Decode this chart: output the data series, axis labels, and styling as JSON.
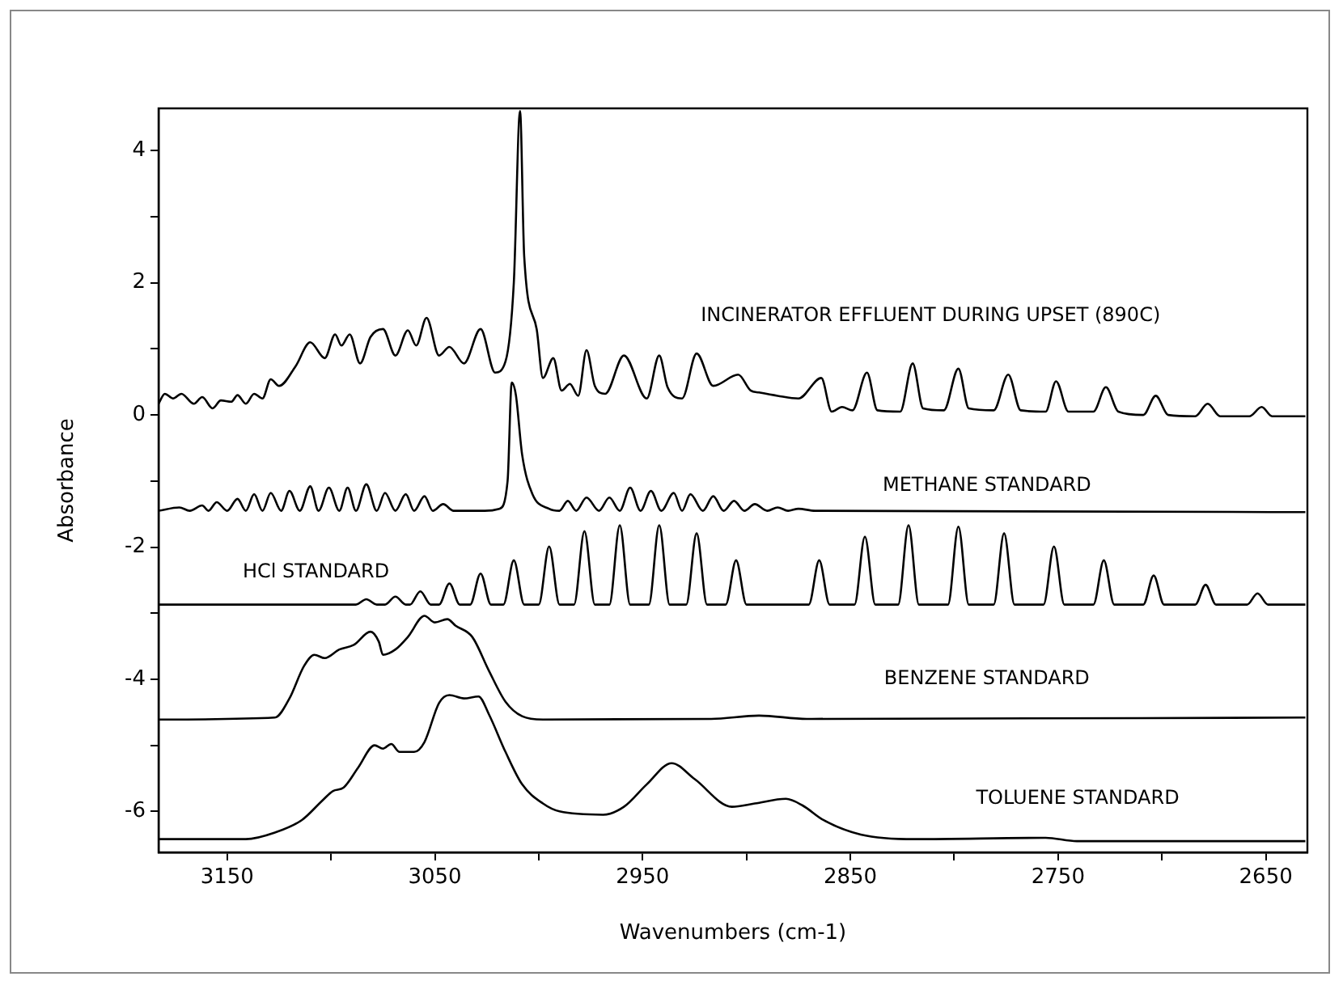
{
  "chart_data": {
    "type": "line",
    "xlabel": "Wavenumbers (cm-1)",
    "ylabel": "Absorbance",
    "xlim": [
      3183,
      2630
    ],
    "ylim": [
      -6.62,
      4.64
    ],
    "xticks": [
      3150,
      {
        "value": 3100,
        "label": null
      },
      3050,
      {
        "value": 3000,
        "label": null
      },
      2950,
      {
        "value": 2900,
        "label": null
      },
      2850,
      {
        "value": 2800,
        "label": null
      },
      2750,
      {
        "value": 2700,
        "label": null
      },
      2650
    ],
    "yticks": [
      -6,
      {
        "value": -5,
        "label": null
      },
      -4,
      {
        "value": -3,
        "label": null
      },
      -2,
      {
        "value": -1,
        "label": null
      },
      0,
      {
        "value": 1,
        "label": null
      },
      2,
      {
        "value": 3,
        "label": null
      },
      4
    ],
    "grid": false,
    "legend": false,
    "series": [
      {
        "name": "INCINERATOR EFFLUENT DURING UPSET (890C)",
        "color": "#000000",
        "x": [
          3183,
          3180,
          3176,
          3172,
          3166,
          3162,
          3157,
          3153,
          3148,
          3145,
          3141,
          3137,
          3133,
          3129,
          3125,
          3117,
          3110,
          3103,
          3098,
          3095,
          3091,
          3086,
          3081,
          3075,
          3069,
          3063,
          3059,
          3054,
          3048,
          3043,
          3036,
          3028,
          3021,
          3016,
          3012,
          3009,
          3007,
          3001,
          2998,
          2993,
          2989,
          2985,
          2981,
          2977,
          2973,
          2968,
          2959,
          2948,
          2942,
          2938,
          2931,
          2924,
          2916,
          2904,
          2898,
          2894,
          2885,
          2875,
          2864,
          2859,
          2854,
          2849,
          2842,
          2837,
          2826,
          2820,
          2815,
          2805,
          2798,
          2793,
          2781,
          2774,
          2768,
          2756,
          2751,
          2745,
          2733,
          2727,
          2721,
          2709,
          2703,
          2697,
          2684,
          2678,
          2672,
          2658,
          2652,
          2647,
          2631
        ],
        "values": [
          0.17,
          0.32,
          0.25,
          0.32,
          0.17,
          0.27,
          0.1,
          0.22,
          0.2,
          0.3,
          0.17,
          0.32,
          0.25,
          0.54,
          0.44,
          0.74,
          1.1,
          0.86,
          1.22,
          1.05,
          1.22,
          0.78,
          1.18,
          1.3,
          0.9,
          1.28,
          1.05,
          1.47,
          0.9,
          1.03,
          0.78,
          1.3,
          0.64,
          0.81,
          2.0,
          4.6,
          2.4,
          1.3,
          0.56,
          0.86,
          0.37,
          0.47,
          0.29,
          0.98,
          0.44,
          0.32,
          0.9,
          0.25,
          0.9,
          0.42,
          0.25,
          0.93,
          0.44,
          0.61,
          0.37,
          0.34,
          0.29,
          0.25,
          0.56,
          0.05,
          0.12,
          0.07,
          0.64,
          0.07,
          0.05,
          0.78,
          0.1,
          0.07,
          0.7,
          0.1,
          0.07,
          0.61,
          0.07,
          0.05,
          0.51,
          0.05,
          0.05,
          0.42,
          0.05,
          0,
          0.29,
          0,
          -0.02,
          0.17,
          -0.02,
          -0.02,
          0.12,
          -0.02,
          -0.02
        ]
      },
      {
        "name": "METHANE STANDARD",
        "color": "#000000",
        "x": [
          3183,
          3173,
          3168,
          3162,
          3159,
          3155,
          3150,
          3145,
          3141,
          3137,
          3133,
          3129,
          3124,
          3120,
          3115,
          3110,
          3106,
          3101,
          3096,
          3092,
          3088,
          3083,
          3078,
          3074,
          3069,
          3064,
          3060,
          3055,
          3051,
          3046,
          3041,
          3026,
          3019,
          3015,
          3013,
          3011,
          3008,
          3003,
          2995,
          2990,
          2986,
          2982,
          2977,
          2971,
          2966,
          2961,
          2956,
          2951,
          2946,
          2941,
          2935,
          2931,
          2927,
          2921,
          2916,
          2911,
          2906,
          2901,
          2896,
          2890,
          2885,
          2880,
          2875,
          2867,
          2631
        ],
        "values": [
          -1.45,
          -1.4,
          -1.45,
          -1.37,
          -1.45,
          -1.32,
          -1.45,
          -1.27,
          -1.45,
          -1.2,
          -1.45,
          -1.18,
          -1.45,
          -1.15,
          -1.45,
          -1.08,
          -1.45,
          -1.1,
          -1.45,
          -1.1,
          -1.45,
          -1.05,
          -1.45,
          -1.18,
          -1.45,
          -1.2,
          -1.45,
          -1.23,
          -1.45,
          -1.35,
          -1.45,
          -1.45,
          -1.42,
          -1.0,
          0.49,
          0.3,
          -0.6,
          -1.2,
          -1.42,
          -1.45,
          -1.3,
          -1.45,
          -1.25,
          -1.45,
          -1.25,
          -1.45,
          -1.1,
          -1.45,
          -1.15,
          -1.45,
          -1.18,
          -1.45,
          -1.2,
          -1.45,
          -1.23,
          -1.45,
          -1.3,
          -1.45,
          -1.35,
          -1.45,
          -1.4,
          -1.45,
          -1.42,
          -1.45,
          -1.47
        ]
      },
      {
        "name": "HCl STANDARD",
        "color": "#000000",
        "x": [
          3183,
          3088,
          3083,
          3078,
          3074,
          3069,
          3064,
          3062,
          3057,
          3052,
          3048,
          3043,
          3038,
          3033,
          3028,
          3023,
          3017,
          3012,
          3007,
          3000,
          2995,
          2990,
          2983,
          2978,
          2973,
          2966,
          2961,
          2956,
          2947,
          2942,
          2937,
          2929,
          2924,
          2919,
          2910,
          2905,
          2900,
          2870,
          2865,
          2860,
          2848,
          2843,
          2838,
          2827,
          2822,
          2817,
          2803,
          2798,
          2793,
          2781,
          2776,
          2771,
          2757,
          2752,
          2747,
          2733,
          2728,
          2723,
          2709,
          2704,
          2699,
          2684,
          2679,
          2674,
          2659,
          2654,
          2649,
          2631
        ],
        "values": [
          -2.87,
          -2.87,
          -2.79,
          -2.87,
          -2.87,
          -2.75,
          -2.87,
          -2.87,
          -2.67,
          -2.87,
          -2.87,
          -2.55,
          -2.87,
          -2.87,
          -2.4,
          -2.87,
          -2.87,
          -2.2,
          -2.87,
          -2.87,
          -1.99,
          -2.87,
          -2.87,
          -1.76,
          -2.87,
          -2.87,
          -1.67,
          -2.87,
          -2.87,
          -1.67,
          -2.87,
          -2.87,
          -1.79,
          -2.87,
          -2.87,
          -2.2,
          -2.87,
          -2.87,
          -2.2,
          -2.87,
          -2.87,
          -1.84,
          -2.87,
          -2.87,
          -1.67,
          -2.87,
          -2.87,
          -1.69,
          -2.87,
          -2.87,
          -1.79,
          -2.87,
          -2.87,
          -1.99,
          -2.87,
          -2.87,
          -2.2,
          -2.87,
          -2.87,
          -2.43,
          -2.87,
          -2.87,
          -2.57,
          -2.87,
          -2.87,
          -2.7,
          -2.87,
          -2.87
        ]
      },
      {
        "name": "BENZENE STANDARD",
        "color": "#000000",
        "x": [
          3183,
          3127,
          3120,
          3113,
          3108,
          3103,
          3096,
          3089,
          3081,
          3077,
          3075,
          3069,
          3063,
          3055,
          3050,
          3044,
          3040,
          3032,
          3024,
          3016,
          3008,
          2998,
          2917,
          2894,
          2871,
          2631
        ],
        "values": [
          -4.61,
          -4.58,
          -4.29,
          -3.8,
          -3.63,
          -3.68,
          -3.55,
          -3.48,
          -3.28,
          -3.43,
          -3.63,
          -3.55,
          -3.36,
          -3.04,
          -3.14,
          -3.09,
          -3.19,
          -3.36,
          -3.87,
          -4.34,
          -4.56,
          -4.61,
          -4.6,
          -4.55,
          -4.6,
          -4.58
        ]
      },
      {
        "name": "TOLUENE STANDARD",
        "color": "#000000",
        "x": [
          3183,
          3141,
          3127,
          3114,
          3104,
          3099,
          3094,
          3087,
          3079,
          3075,
          3071,
          3067,
          3060,
          3055,
          3048,
          3043,
          3036,
          3029,
          3024,
          3016,
          3008,
          2998,
          2990,
          2969,
          2959,
          2948,
          2936,
          2925,
          2907,
          2896,
          2881,
          2873,
          2863,
          2845,
          2819,
          2756,
          2741,
          2631
        ],
        "values": [
          -6.42,
          -6.42,
          -6.32,
          -6.13,
          -5.83,
          -5.69,
          -5.64,
          -5.34,
          -5.0,
          -5.05,
          -4.98,
          -5.1,
          -5.1,
          -4.95,
          -4.36,
          -4.24,
          -4.29,
          -4.26,
          -4.53,
          -5.1,
          -5.59,
          -5.88,
          -6.0,
          -6.05,
          -5.93,
          -5.59,
          -5.27,
          -5.51,
          -5.93,
          -5.88,
          -5.81,
          -5.91,
          -6.13,
          -6.35,
          -6.42,
          -6.4,
          -6.45,
          -6.45
        ]
      }
    ]
  }
}
